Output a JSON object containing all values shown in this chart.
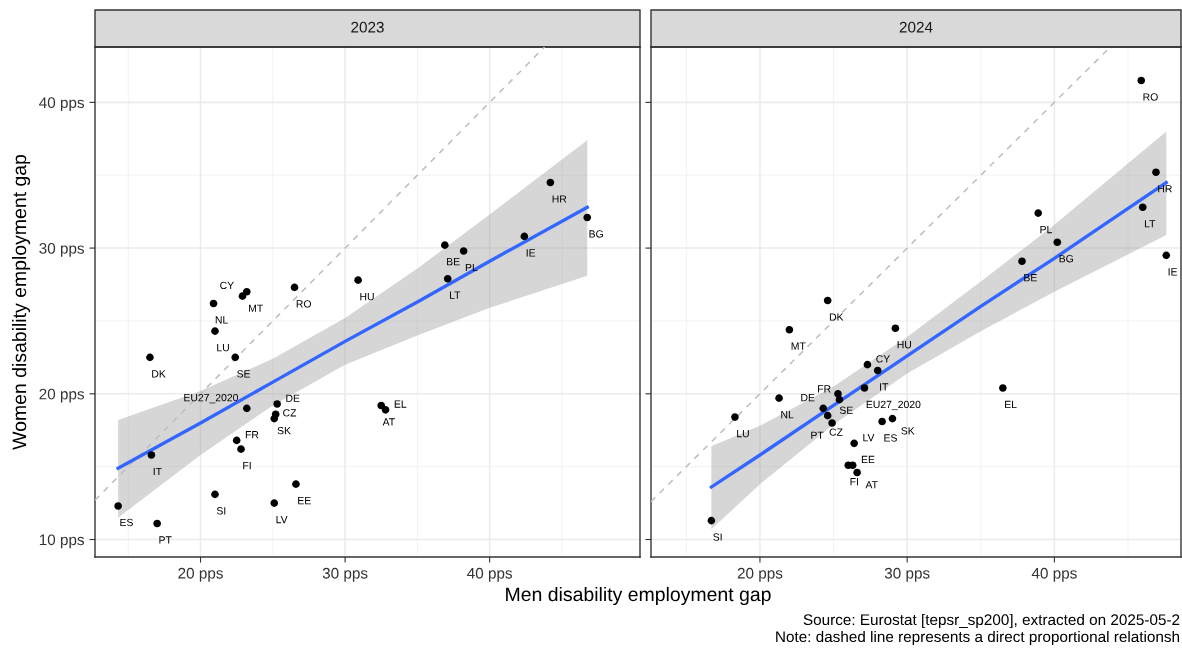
{
  "chart_data": [
    {
      "type": "scatter",
      "title": "2023",
      "xlabel": "Men disability employment gap",
      "ylabel": "Women disability employment gap",
      "xlim": [
        12.7,
        50.4
      ],
      "ylim": [
        8.8,
        43.8
      ],
      "xticks": [
        {
          "value": 20,
          "label": "20 pps"
        },
        {
          "value": 30,
          "label": "30 pps"
        },
        {
          "value": 40,
          "label": "40 pps"
        }
      ],
      "yticks": [
        {
          "value": 10,
          "label": "10 pps"
        },
        {
          "value": 20,
          "label": "20 pps"
        },
        {
          "value": 30,
          "label": "30 pps"
        },
        {
          "value": 40,
          "label": "40 pps"
        }
      ],
      "grid": true,
      "legend": false,
      "marker": "circle",
      "series": [
        {
          "type": "line",
          "color": "#bebebe",
          "line_style": "dashed",
          "marker": "none",
          "x": [
            12.7,
            43.8
          ],
          "values": [
            12.7,
            43.8
          ]
        },
        {
          "type": "line",
          "color": "#3366ff",
          "line_style": "solid",
          "marker": "none",
          "x": [
            14.3,
            20,
            25,
            30,
            35,
            40,
            46.75
          ],
          "values": [
            14.9,
            18.0,
            20.8,
            23.6,
            26.3,
            29.1,
            32.8
          ],
          "lower": [
            11.5,
            15.8,
            19.2,
            22.0,
            24.0,
            25.9,
            28.1
          ],
          "upper": [
            18.2,
            20.2,
            22.4,
            25.2,
            28.6,
            32.3,
            37.4
          ]
        },
        {
          "type": "scatter",
          "color": "#000000",
          "x": [
            44.2,
            46.75,
            42.4,
            36.9,
            38.2,
            37.1,
            30.9,
            26.5,
            23.2,
            22.9,
            20.9,
            21.0,
            16.5,
            22.4,
            23.2,
            25.3,
            25.2,
            25.1,
            32.5,
            32.8,
            22.5,
            22.8,
            16.6,
            26.6,
            21.0,
            25.1,
            14.3,
            17.0
          ],
          "values": [
            34.5,
            32.1,
            30.8,
            30.2,
            29.8,
            27.9,
            27.8,
            27.3,
            27.0,
            26.7,
            26.2,
            24.3,
            22.5,
            22.5,
            19.0,
            19.3,
            18.6,
            18.3,
            19.2,
            18.9,
            16.8,
            16.2,
            15.8,
            13.8,
            13.1,
            12.5,
            12.3,
            11.1
          ]
        }
      ],
      "annotations": [
        {
          "text": "HR",
          "x": 44.2,
          "y": 34.5
        },
        {
          "text": "BG",
          "x": 46.75,
          "y": 32.1
        },
        {
          "text": "IE",
          "x": 42.4,
          "y": 30.8
        },
        {
          "text": "BE",
          "x": 36.9,
          "y": 30.2
        },
        {
          "text": "PL",
          "x": 38.2,
          "y": 29.8
        },
        {
          "text": "LT",
          "x": 37.1,
          "y": 27.9
        },
        {
          "text": "HU",
          "x": 30.9,
          "y": 27.8
        },
        {
          "text": "RO",
          "x": 26.5,
          "y": 27.3
        },
        {
          "text": "MT",
          "x": 23.2,
          "y": 27.0
        },
        {
          "text": "CY",
          "x": 22.9,
          "y": 26.7
        },
        {
          "text": "NL",
          "x": 20.9,
          "y": 26.2
        },
        {
          "text": "LU",
          "x": 21.0,
          "y": 24.3
        },
        {
          "text": "DK",
          "x": 16.5,
          "y": 22.5
        },
        {
          "text": "SE",
          "x": 22.4,
          "y": 22.5
        },
        {
          "text": "EU27_2020",
          "x": 23.2,
          "y": 19.0
        },
        {
          "text": "DE",
          "x": 25.3,
          "y": 19.3
        },
        {
          "text": "SK",
          "x": 25.2,
          "y": 18.6
        },
        {
          "text": "CZ",
          "x": 25.1,
          "y": 18.3
        },
        {
          "text": "AT",
          "x": 32.5,
          "y": 19.2
        },
        {
          "text": "EL",
          "x": 32.8,
          "y": 18.9
        },
        {
          "text": "FR",
          "x": 22.5,
          "y": 16.8
        },
        {
          "text": "FI",
          "x": 22.8,
          "y": 16.2
        },
        {
          "text": "IT",
          "x": 16.6,
          "y": 15.8
        },
        {
          "text": "EE",
          "x": 26.6,
          "y": 13.8
        },
        {
          "text": "SI",
          "x": 21.0,
          "y": 13.1
        },
        {
          "text": "LV",
          "x": 25.1,
          "y": 12.5
        },
        {
          "text": "ES",
          "x": 14.3,
          "y": 12.3
        },
        {
          "text": "PT",
          "x": 17.0,
          "y": 11.1
        }
      ]
    },
    {
      "type": "scatter",
      "title": "2024",
      "xlim": [
        12.6,
        48.6
      ],
      "ylim": [
        8.8,
        43.8
      ],
      "xticks": [
        {
          "value": 20,
          "label": "20 pps"
        },
        {
          "value": 30,
          "label": "30 pps"
        },
        {
          "value": 40,
          "label": "40 pps"
        }
      ],
      "yticks": [
        10,
        20,
        30,
        40
      ],
      "tick_labels": "x",
      "grid": true,
      "legend": false,
      "marker": "circle",
      "series": [
        {
          "type": "line",
          "color": "#bebebe",
          "line_style": "dashed",
          "marker": "none",
          "x": [
            12.6,
            43.8
          ],
          "values": [
            12.6,
            43.8
          ]
        },
        {
          "type": "line",
          "color": "#3366ff",
          "line_style": "solid",
          "marker": "none",
          "x": [
            16.7,
            20,
            25,
            30,
            35,
            40,
            47.6
          ],
          "values": [
            13.6,
            15.8,
            19.2,
            22.6,
            26.0,
            29.3,
            34.5
          ],
          "lower": [
            10.7,
            13.8,
            17.9,
            21.4,
            24.3,
            27.0,
            30.9
          ],
          "upper": [
            16.4,
            17.8,
            20.5,
            23.9,
            27.7,
            31.6,
            38.0
          ]
        },
        {
          "type": "scatter",
          "color": "#000000",
          "x": [
            45.9,
            46.9,
            46.0,
            47.6,
            38.9,
            40.2,
            37.8,
            24.6,
            22.0,
            29.2,
            27.3,
            28.0,
            27.1,
            36.5,
            25.3,
            25.4,
            24.3,
            24.6,
            24.9,
            21.3,
            18.3,
            28.3,
            29.0,
            26.4,
            26.0,
            26.3,
            26.6,
            16.7
          ],
          "values": [
            41.5,
            35.2,
            32.8,
            29.5,
            32.4,
            30.4,
            29.1,
            26.4,
            24.4,
            24.5,
            22.0,
            21.6,
            20.4,
            20.4,
            20.0,
            19.6,
            19.0,
            18.5,
            18.0,
            19.7,
            18.4,
            18.1,
            18.3,
            16.6,
            15.1,
            15.1,
            14.6,
            11.3
          ]
        }
      ],
      "annotations": [
        {
          "text": "RO",
          "x": 45.9,
          "y": 41.5
        },
        {
          "text": "HR",
          "x": 46.9,
          "y": 35.2
        },
        {
          "text": "LT",
          "x": 46.0,
          "y": 32.8
        },
        {
          "text": "IE",
          "x": 47.6,
          "y": 29.5
        },
        {
          "text": "PL",
          "x": 38.9,
          "y": 32.4
        },
        {
          "text": "BG",
          "x": 40.2,
          "y": 30.4
        },
        {
          "text": "BE",
          "x": 37.8,
          "y": 29.1
        },
        {
          "text": "DK",
          "x": 24.6,
          "y": 26.4
        },
        {
          "text": "MT",
          "x": 22.0,
          "y": 24.4
        },
        {
          "text": "HU",
          "x": 29.2,
          "y": 24.5
        },
        {
          "text": "CY",
          "x": 27.3,
          "y": 22.0
        },
        {
          "text": "IT",
          "x": 28.0,
          "y": 21.6
        },
        {
          "text": "EU27_2020",
          "x": 27.1,
          "y": 20.4
        },
        {
          "text": "EL",
          "x": 36.5,
          "y": 20.4
        },
        {
          "text": "SE",
          "x": 25.3,
          "y": 20.0
        },
        {
          "text": "FR",
          "x": 25.4,
          "y": 19.6
        },
        {
          "text": "DE",
          "x": 24.3,
          "y": 19.0
        },
        {
          "text": "CZ",
          "x": 24.6,
          "y": 18.5
        },
        {
          "text": "PT",
          "x": 24.9,
          "y": 18.0
        },
        {
          "text": "NL",
          "x": 21.3,
          "y": 19.7
        },
        {
          "text": "LU",
          "x": 18.3,
          "y": 18.4
        },
        {
          "text": "ES",
          "x": 28.3,
          "y": 18.1
        },
        {
          "text": "SK",
          "x": 29.0,
          "y": 18.3
        },
        {
          "text": "LV",
          "x": 26.4,
          "y": 16.6
        },
        {
          "text": "FI",
          "x": 26.0,
          "y": 15.1
        },
        {
          "text": "EE",
          "x": 26.3,
          "y": 15.1
        },
        {
          "text": "AT",
          "x": 26.6,
          "y": 14.6
        },
        {
          "text": "SI",
          "x": 16.7,
          "y": 11.3
        },
        "Source: Eurostat [tepsr_sp200], extracted on 2025-05-2",
        "Note: dashed line represents a direct proportional relationsh"
      ]
    }
  ]
}
